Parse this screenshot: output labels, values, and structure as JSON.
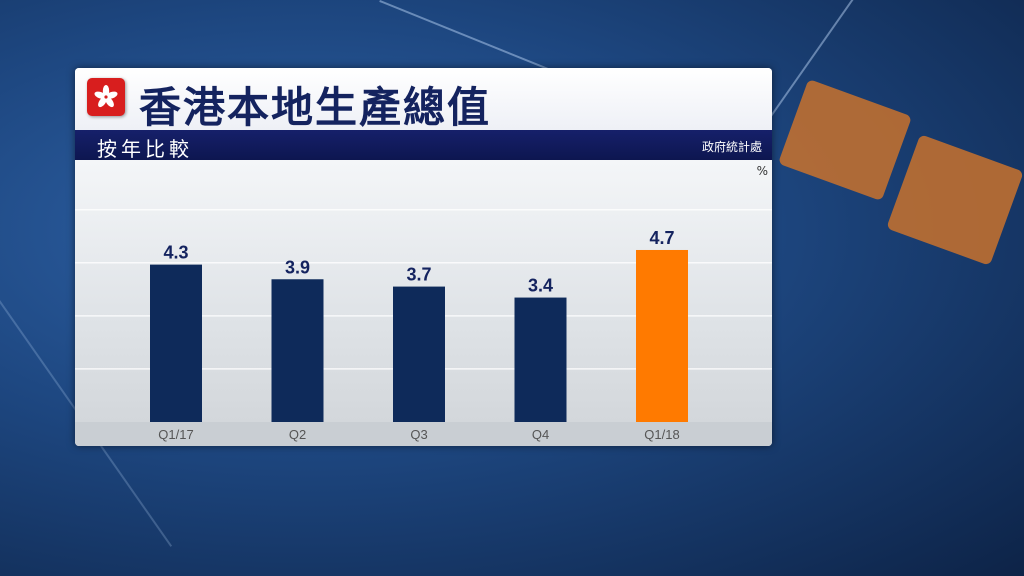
{
  "header": {
    "title": "香港本地生產總值",
    "subtitle": "按年比較",
    "source": "政府統計處",
    "flag_icon": "hk-bauhinia-flag-icon"
  },
  "colors": {
    "bar_default": "#0e2a5a",
    "bar_highlight": "#ff7a00",
    "value_label": "#14235f",
    "tick_label": "#555555"
  },
  "chart_data": {
    "type": "bar",
    "title": "香港本地生產總值",
    "subtitle": "按年比較",
    "unit": "%",
    "categories": [
      "Q1/17",
      "Q2",
      "Q3",
      "Q4",
      "Q1/18"
    ],
    "values": [
      4.3,
      3.9,
      3.7,
      3.4,
      4.7
    ],
    "labels": [
      "4.3",
      "3.9",
      "3.7",
      "3.4",
      "4.7"
    ],
    "highlight_index": 4,
    "ylim": [
      0,
      5.5
    ],
    "grid": true,
    "legend": "none"
  }
}
